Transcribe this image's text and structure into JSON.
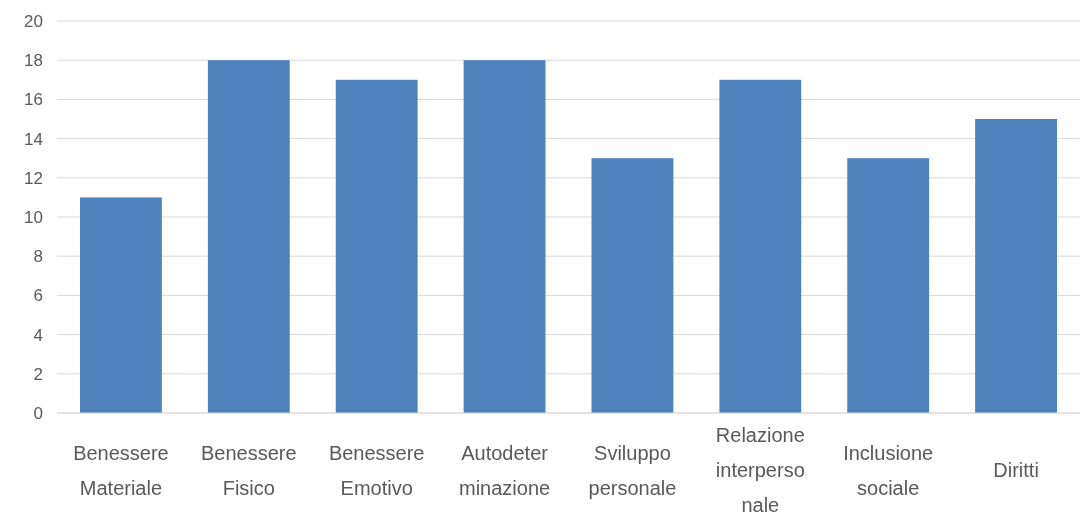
{
  "chart_data": {
    "type": "bar",
    "categories": [
      "Benessere\nMateriale",
      "Benessere\nFisico",
      "Benessere\nEmotivo",
      "Autodeter\nminazione",
      "Sviluppo\npersonale",
      "Relazione\ninterperso\nnale",
      "Inclusione\nsociale",
      "Diritti"
    ],
    "values": [
      11,
      18,
      17,
      18,
      13,
      17,
      13,
      15
    ],
    "color": "#4f81bd",
    "ylim": [
      0,
      20
    ],
    "yticks": [
      0,
      2,
      4,
      6,
      8,
      10,
      12,
      14,
      16,
      18,
      20
    ],
    "grid": "y"
  }
}
